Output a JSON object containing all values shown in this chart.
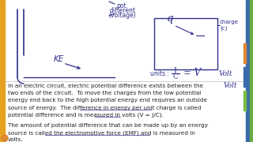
{
  "bg_color": "#e8e8e0",
  "page_bg": "#dcdcd4",
  "ink_color": "#2e2e8c",
  "text_color": "#222222",
  "sidebar_left_color": "#e8a020",
  "sidebar_right_color": "#3a6aaa",
  "sidebar_right2_color": "#6aaa44",
  "p1_lines": [
    "In an electric circuit, electric potential difference exists between the",
    "two ends of the circuit.  To move the charges from the low potential",
    "energy end back to the high potential energy end requires an outside",
    "source of energy.  The difference in energy per unit charge is called",
    "potential difference and is measured in volts (V = J/C)."
  ],
  "p2_lines": [
    "The amount of potential difference that can be made up by an energy",
    "source is called the electromotive force (EMF) and is measured in",
    "volts."
  ],
  "text_fontsize": 5.2,
  "diag_fontsize": 5.5
}
